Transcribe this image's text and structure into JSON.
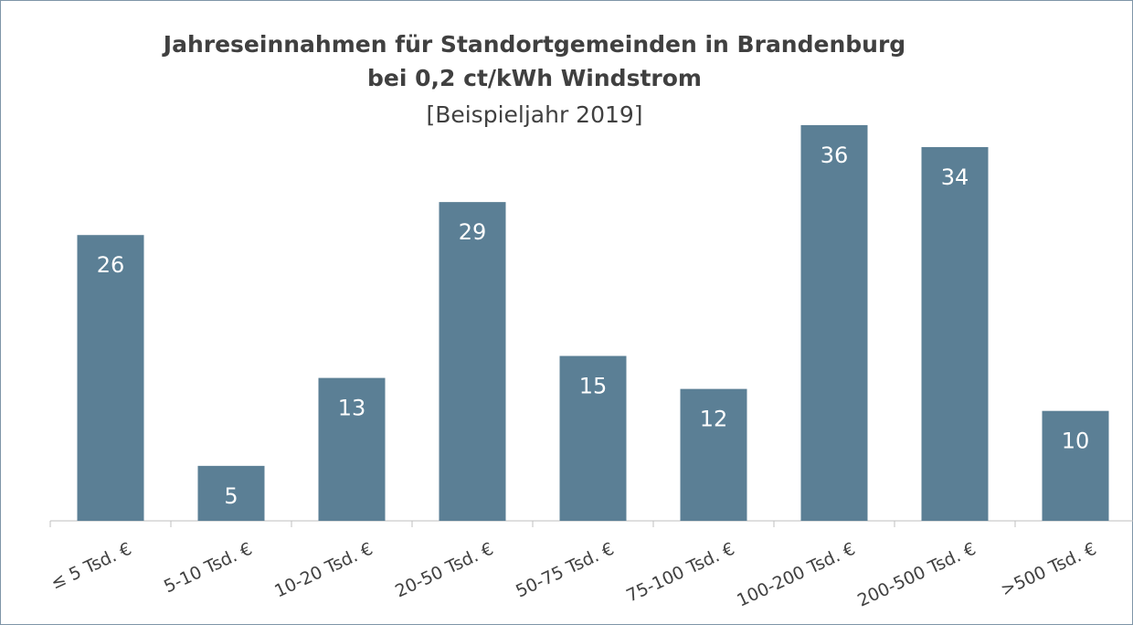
{
  "chart_data": {
    "type": "bar",
    "title": "Jahreseinnahmen für Standortgemeinden in Brandenburg",
    "title_line2": "bei 0,2 ct/kWh Windstrom",
    "subtitle": "[Beispieljahr 2019]",
    "categories": [
      "≤ 5 Tsd. €",
      "5-10 Tsd. €",
      "10-20 Tsd. €",
      "20-50 Tsd. €",
      "50-75 Tsd. €",
      "75-100 Tsd. €",
      "100-200 Tsd. €",
      "200-500 Tsd. €",
      ">500 Tsd. €"
    ],
    "values": [
      26,
      5,
      13,
      29,
      15,
      12,
      36,
      34,
      10
    ],
    "color": "#5b7f95"
  }
}
